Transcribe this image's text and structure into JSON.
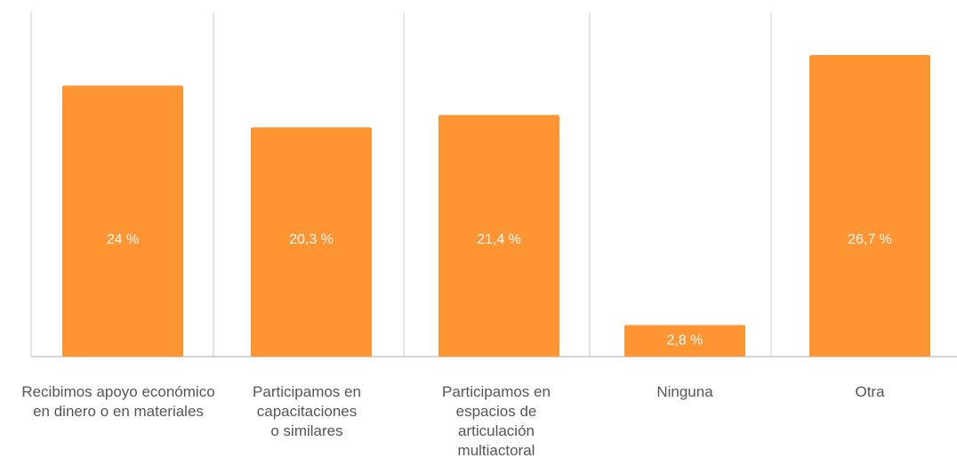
{
  "chart_data": {
    "type": "bar",
    "categories": [
      "Recibimos apoyo económico\nen dinero o en materiales",
      "Participamos en\ncapacitaciones\no similares",
      "Participamos en\nespacios de\narticulación\nmultiactoral",
      "Ninguna",
      "Otra"
    ],
    "values": [
      24,
      20.3,
      21.4,
      2.8,
      26.7
    ],
    "value_labels": [
      "24 %",
      "20,3 %",
      "21,4 %",
      "2,8 %",
      "26,7 %"
    ],
    "color": "#ff9433"
  }
}
